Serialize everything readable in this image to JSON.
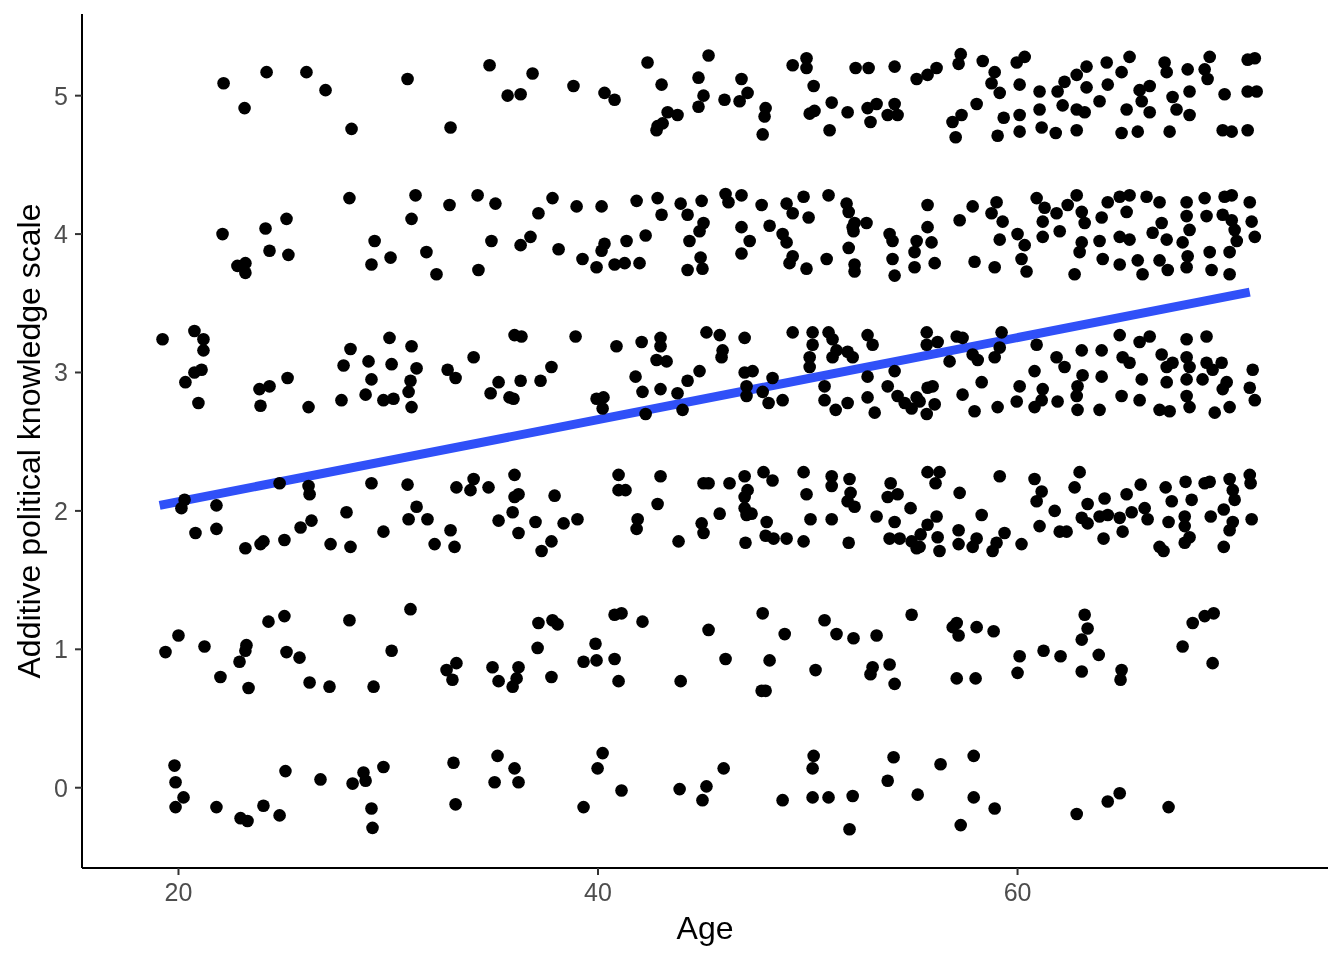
{
  "chart_data": {
    "type": "scatter",
    "xlabel": "Age",
    "ylabel": "Additive political knowledge scale",
    "xlim": [
      15.4,
      74.8
    ],
    "ylim": [
      -0.58,
      5.59
    ],
    "xticks": [
      20,
      40,
      60
    ],
    "yticks": [
      0,
      1,
      2,
      3,
      4,
      5
    ],
    "marker": "circle",
    "series": [
      {
        "color": "#000000",
        "x": [
          19.81,
          19.86,
          20.24,
          19.86,
          21.81,
          22.96,
          23.29,
          24.05,
          24.82,
          25.1,
          26.77,
          28.3,
          28.82,
          28.92,
          29.77,
          29.2,
          29.25,
          33.11,
          33.21,
          35.21,
          35.07,
          36.02,
          36.21,
          40.22,
          39.98,
          39.31,
          41.12,
          43.89,
          45.17,
          44.98,
          45.99,
          48.8,
          50.28,
          50.23,
          50.23,
          50.99,
          51.99,
          52.14,
          53.81,
          54.09,
          55.24,
          56.33,
          57.91,
          57.91,
          58.91,
          57.29,
          62.82,
          64.3,
          64.87,
          67.2,
          19.38,
          20.0,
          21.24,
          22.0,
          22.91,
          23.19,
          23.24,
          23.34,
          24.29,
          25.05,
          25.15,
          25.77,
          26.25,
          27.2,
          28.15,
          29.3,
          30.16,
          31.06,
          32.78,
          33.25,
          33.06,
          34.97,
          35.26,
          35.93,
          36.12,
          36.21,
          37.12,
          37.16,
          37.83,
          38.07,
          37.78,
          39.31,
          39.93,
          39.88,
          40.79,
          40.98,
          40.79,
          41.12,
          42.12,
          43.94,
          45.27,
          46.08,
          47.85,
          48.18,
          47.8,
          47.99,
          48.9,
          50.37,
          50.8,
          51.37,
          52.18,
          53.28,
          53.09,
          52.99,
          53.9,
          54.14,
          54.95,
          57.1,
          56.91,
          57.19,
          58.05,
          58.86,
          57.1,
          58.0,
          60.1,
          60.0,
          61.24,
          62.05,
          63.2,
          63.34,
          63.06,
          63.87,
          63.06,
          64.96,
          64.91,
          67.87,
          68.35,
          68.92,
          69.35,
          69.3,
          20.14,
          20.29,
          21.81,
          20.81,
          21.81,
          23.19,
          23.91,
          24.05,
          25.05,
          25.82,
          26.34,
          26.2,
          26.25,
          24.82,
          27.25,
          28.2,
          28.01,
          29.2,
          29.77,
          30.92,
          30.97,
          31.35,
          31.87,
          32.21,
          32.97,
          33.16,
          33.25,
          33.92,
          34.07,
          34.78,
          35.26,
          36.02,
          36.21,
          36.02,
          35.93,
          36.21,
          37.02,
          37.31,
          37.78,
          37.93,
          38.36,
          39.02,
          40.98,
          40.98,
          41.31,
          41.89,
          41.84,
          42.84,
          42.98,
          43.84,
          44.94,
          45.03,
          45.03,
          45.27,
          45.8,
          46.27,
          46.99,
          47.13,
          46.99,
          46.99,
          47.08,
          47.32,
          47.03,
          47.89,
          48.32,
          48.04,
          47.99,
          48.37,
          48.99,
          49.8,
          49.94,
          50.13,
          49.8,
          51.14,
          51.14,
          51.14,
          51.99,
          52.04,
          51.9,
          52.23,
          51.95,
          53.28,
          53.95,
          53.81,
          54.28,
          54.9,
          54.14,
          53.9,
          54.38,
          54.95,
          55.19,
          55.38,
          55.71,
          55.71,
          56.28,
          56.09,
          57.24,
          59.15,
          56.14,
          56.19,
          56.28,
          55.33,
          57.19,
          57.19,
          57.86,
          58.05,
          58.29,
          58.81,
          59.0,
          59.38,
          60.19,
          60.81,
          61.15,
          60.91,
          61.05,
          61.77,
          62.01,
          62.34,
          62.96,
          62.72,
          63.34,
          63.06,
          63.34,
          63.91,
          64.15,
          64.1,
          64.3,
          64.87,
          65.2,
          65.01,
          65.44,
          65.87,
          66.06,
          66.2,
          66.77,
          66.96,
          67.06,
          67.35,
          67.2,
          68.01,
          68.3,
          67.97,
          67.97,
          68.2,
          67.97,
          68.92,
          69.16,
          69.21,
          70.11,
          70.26,
          70.35,
          69.83,
          70.26,
          70.11,
          69.83,
          71.07,
          71.11,
          71.16,
          19.24,
          20.76,
          21.19,
          21.19,
          21.1,
          20.76,
          20.33,
          20.95,
          23.86,
          24.34,
          23.91,
          25.2,
          26.2,
          27.77,
          28.2,
          27.87,
          29.06,
          29.2,
          30.06,
          30.16,
          28.92,
          29.77,
          30.25,
          31.11,
          31.35,
          31.06,
          30.97,
          31.11,
          32.83,
          33.21,
          34.07,
          35.26,
          34.88,
          35.78,
          36.02,
          36.35,
          38.93,
          40.88,
          37.78,
          36.31,
          37.26,
          35.97,
          39.93,
          40.26,
          40.22,
          42.08,
          42.98,
          42.98,
          42.79,
          43.27,
          41.79,
          42.12,
          42.27,
          42.98,
          43.79,
          44.03,
          44.27,
          44.84,
          45.17,
          45.8,
          45.94,
          45.89,
          46.99,
          46.99,
          47.37,
          47.08,
          47.08,
          47.85,
          48.13,
          48.8,
          48.32,
          49.28,
          50.23,
          50.23,
          50.99,
          51.18,
          51.37,
          50.09,
          50.09,
          51.18,
          51.9,
          52.14,
          52.85,
          53.09,
          50.8,
          50.8,
          51.33,
          52.85,
          52.85,
          53.19,
          51.9,
          53.81,
          54.14,
          54.28,
          54.62,
          54.95,
          55.67,
          55.67,
          55.71,
          55.67,
          55.19,
          56.19,
          57.1,
          57.38,
          56.76,
          58.1,
          58.91,
          59.24,
          59.15,
          57.86,
          55.95,
          55.33,
          56.05,
          57.38,
          57.95,
          59.05,
          58.29,
          60.1,
          59.96,
          60.81,
          60.81,
          60.91,
          61.2,
          61.15,
          61.86,
          62.24,
          63.06,
          63.1,
          62.86,
          62.82,
          61.91,
          62.86,
          63.91,
          64.01,
          64.01,
          64.87,
          65.01,
          64.96,
          65.34,
          65.82,
          65.92,
          65.82,
          66.3,
          66.87,
          67.11,
          66.77,
          67.25,
          67.11,
          67.39,
          68.06,
          68.06,
          68.2,
          68.06,
          68.06,
          68.2,
          68.82,
          69.01,
          69.01,
          69.3,
          69.73,
          69.78,
          69.97,
          70.11,
          69.4,
          71.21,
          71.07,
          71.31,
          28.15,
          31.3,
          34.26,
          35.11,
          32.92,
          31.11,
          34.92,
          34.3,
          32.3,
          31.82,
          30.11,
          29.35,
          29.2,
          22.1,
          24.15,
          25.15,
          24.34,
          25.24,
          22.81,
          23.19,
          23.19,
          37.16,
          37.83,
          38.98,
          40.17,
          41.84,
          42.84,
          43.03,
          43.94,
          44.27,
          44.94,
          46.08,
          46.22,
          46.84,
          47.8,
          48.99,
          49.28,
          49.8,
          50.99,
          51.85,
          51.95,
          50.04,
          52.8,
          52.23,
          52.18,
          48.18,
          46.84,
          45.03,
          44.84,
          44.36,
          42.27,
          41.36,
          40.31,
          40.17,
          39.26,
          38.12,
          36.31,
          36.78,
          39.93,
          40.79,
          41.27,
          41.98,
          44.27,
          44.89,
          44.98,
          46.84,
          47.23,
          48.8,
          48.99,
          49.28,
          49.13,
          49.94,
          50.9,
          51.95,
          52.14,
          52.23,
          52.23,
          53.9,
          54.04,
          54.04,
          54.14,
          55.19,
          55.09,
          55.09,
          55.71,
          55.71,
          55.9,
          56.05,
          57.86,
          57.24,
          59.0,
          58.76,
          59.29,
          59.15,
          57.95,
          58.91,
          60.0,
          60.34,
          60.19,
          60.43,
          60.91,
          61.29,
          61.2,
          61.86,
          61.2,
          62.01,
          62.39,
          62.82,
          63.06,
          63.2,
          63.06,
          62.96,
          62.72,
          63.91,
          64.06,
          64.01,
          64.3,
          64.87,
          65.34,
          65.2,
          64.87,
          65.34,
          64.87,
          65.73,
          65.96,
          66.15,
          66.77,
          66.87,
          66.44,
          67.11,
          66.77,
          67.16,
          68.06,
          68.06,
          68.2,
          67.87,
          68.11,
          68.06,
          68.92,
          69.01,
          69.16,
          69.25,
          69.87,
          70.21,
          69.78,
          70.21,
          70.35,
          70.45,
          70.11,
          70.11,
          71.07,
          71.16,
          71.31,
          22.15,
          23.15,
          24.2,
          26.1,
          27.01,
          28.25,
          30.92,
          32.97,
          34.83,
          35.69,
          36.31,
          36.88,
          38.83,
          40.31,
          40.79,
          42.36,
          43.03,
          43.32,
          43.79,
          42.84,
          42.79,
          43.08,
          44.79,
          45.03,
          44.79,
          45.27,
          46.03,
          46.84,
          47.13,
          46.75,
          47.99,
          47.94,
          47.85,
          49.28,
          49.94,
          49.94,
          50.28,
          51.14,
          50.32,
          50.09,
          51.04,
          51.9,
          52.28,
          52.9,
          52.99,
          52.85,
          53.28,
          53.81,
          54.14,
          54.28,
          54.14,
          55.19,
          55.71,
          56.14,
          57.29,
          57.19,
          58.34,
          58.91,
          58.76,
          59.15,
          59.96,
          60.34,
          60.1,
          58.05,
          57.33,
          56.9,
          57.05,
          59.05,
          59.34,
          60.1,
          60.1,
          61.05,
          61.05,
          61.15,
          61.82,
          61.91,
          62.24,
          62.15,
          62.82,
          62.82,
          62.82,
          63.29,
          63.29,
          63.2,
          63.91,
          64.25,
          64.3,
          64.96,
          65.34,
          65.2,
          64.96,
          65.73,
          65.82,
          65.92,
          66.3,
          66.3,
          67.01,
          67.11,
          67.25,
          67.39,
          67.58,
          68.11,
          68.2,
          68.2,
          68.92,
          69.16,
          69.06,
          69.87,
          69.78,
          70.21,
          70.97,
          70.97,
          71.31,
          70.97,
          71.4
        ],
        "values": [
          0.16,
          0.04,
          -0.07,
          -0.14,
          -0.14,
          -0.22,
          -0.24,
          -0.13,
          -0.2,
          0.12,
          0.06,
          0.03,
          0.11,
          0.05,
          0.15,
          -0.15,
          -0.29,
          0.18,
          -0.12,
          0.23,
          0.04,
          0.14,
          0.04,
          0.25,
          0.14,
          -0.14,
          -0.02,
          -0.01,
          0.01,
          -0.09,
          0.14,
          -0.09,
          0.23,
          0.14,
          -0.07,
          -0.07,
          -0.3,
          -0.06,
          0.05,
          0.22,
          -0.05,
          0.17,
          0.23,
          -0.07,
          -0.15,
          -0.27,
          -0.19,
          -0.1,
          -0.04,
          -0.14,
          0.98,
          1.1,
          1.02,
          0.8,
          0.91,
          0.99,
          1.03,
          0.72,
          1.2,
          1.24,
          0.98,
          0.94,
          0.76,
          0.73,
          1.21,
          0.73,
          0.99,
          1.29,
          0.85,
          0.9,
          0.78,
          0.87,
          0.77,
          0.73,
          0.79,
          0.87,
          1.01,
          1.19,
          1.21,
          1.18,
          0.8,
          0.91,
          0.92,
          1.04,
          0.93,
          0.77,
          1.25,
          1.26,
          1.2,
          0.77,
          1.14,
          0.93,
          1.26,
          0.92,
          0.7,
          0.7,
          1.11,
          0.85,
          1.21,
          1.11,
          1.08,
          1.1,
          0.87,
          0.82,
          0.89,
          0.75,
          1.25,
          1.19,
          1.16,
          1.1,
          1.16,
          1.13,
          0.79,
          0.79,
          0.95,
          0.83,
          0.99,
          0.95,
          1.25,
          1.15,
          1.07,
          0.96,
          0.84,
          0.85,
          0.78,
          1.02,
          1.19,
          1.24,
          1.26,
          0.9,
          2.02,
          2.08,
          2.04,
          1.84,
          1.87,
          1.73,
          1.76,
          1.78,
          1.79,
          1.88,
          1.93,
          2.18,
          2.12,
          2.2,
          1.76,
          1.74,
          1.99,
          2.2,
          1.85,
          2.19,
          1.94,
          2.03,
          1.94,
          1.76,
          1.86,
          1.74,
          2.17,
          2.15,
          2.23,
          2.17,
          1.93,
          2.26,
          2.12,
          2.1,
          1.99,
          1.84,
          1.92,
          1.71,
          1.78,
          2.11,
          1.91,
          1.94,
          2.26,
          2.15,
          2.15,
          1.94,
          1.87,
          2.05,
          2.25,
          1.78,
          1.91,
          1.84,
          2.2,
          2.2,
          1.98,
          2.2,
          2.25,
          2.15,
          2.1,
          2.02,
          1.97,
          1.98,
          1.77,
          2.28,
          2.22,
          1.92,
          1.82,
          1.8,
          1.8,
          2.28,
          2.12,
          1.94,
          1.78,
          2.25,
          1.94,
          2.18,
          2.23,
          2.13,
          2.07,
          2.03,
          1.77,
          1.96,
          2.2,
          2.1,
          2.12,
          2.02,
          1.92,
          1.8,
          1.8,
          1.78,
          1.73,
          1.83,
          2.28,
          1.9,
          2.28,
          2.2,
          2.13,
          2.25,
          1.96,
          1.81,
          1.71,
          1.74,
          1.86,
          1.76,
          1.74,
          1.8,
          1.97,
          1.71,
          1.77,
          1.84,
          1.76,
          2.23,
          2.14,
          2.07,
          1.89,
          2.0,
          1.85,
          1.85,
          2.28,
          2.17,
          2.05,
          1.95,
          1.91,
          1.96,
          2.09,
          1.8,
          1.97,
          1.95,
          2.12,
          1.85,
          1.99,
          2.19,
          2.02,
          1.94,
          1.74,
          1.71,
          2.17,
          2.07,
          1.92,
          2.21,
          2.08,
          1.96,
          1.89,
          1.81,
          1.77,
          2.2,
          2.21,
          1.96,
          2.23,
          2.15,
          2.08,
          2.01,
          1.92,
          1.86,
          1.74,
          2.26,
          2.2,
          1.94,
          3.24,
          3.3,
          3.24,
          3.16,
          3.02,
          3.0,
          2.93,
          2.78,
          2.88,
          2.9,
          2.76,
          2.96,
          2.75,
          2.8,
          3.17,
          3.05,
          3.08,
          2.95,
          3.25,
          3.06,
          2.84,
          2.8,
          2.81,
          3.19,
          3.03,
          2.94,
          2.86,
          2.75,
          3.02,
          2.96,
          3.11,
          2.93,
          2.85,
          2.82,
          3.27,
          3.26,
          3.26,
          3.19,
          3.04,
          2.94,
          2.94,
          2.81,
          2.81,
          2.82,
          2.74,
          3.22,
          3.25,
          3.19,
          3.09,
          3.08,
          2.97,
          2.86,
          2.7,
          2.88,
          2.85,
          2.73,
          2.94,
          3.01,
          3.29,
          3.27,
          3.16,
          3.11,
          3.25,
          3.0,
          3.01,
          2.9,
          2.83,
          2.86,
          2.78,
          2.8,
          2.96,
          3.29,
          3.29,
          3.2,
          3.29,
          3.24,
          3.16,
          3.11,
          3.04,
          3.11,
          3.15,
          3.11,
          3.27,
          3.2,
          2.9,
          2.8,
          2.73,
          2.97,
          2.82,
          2.71,
          2.78,
          2.9,
          3.01,
          2.83,
          2.78,
          2.74,
          3.29,
          3.2,
          2.89,
          2.7,
          2.82,
          3.22,
          3.26,
          3.25,
          3.08,
          3.09,
          3.11,
          3.29,
          3.18,
          3.13,
          2.9,
          2.79,
          2.77,
          2.84,
          2.72,
          2.75,
          2.93,
          2.9,
          2.79,
          2.75,
          3.01,
          3.2,
          2.88,
          2.8,
          3.11,
          3.04,
          3.16,
          2.98,
          2.9,
          2.83,
          2.79,
          2.73,
          2.73,
          3.16,
          2.97,
          3.27,
          3.11,
          2.83,
          3.07,
          3.22,
          2.95,
          2.8,
          3.26,
          3.13,
          3.04,
          2.73,
          2.72,
          2.93,
          3.07,
          3.24,
          3.11,
          3.04,
          2.95,
          2.83,
          2.75,
          2.95,
          3.07,
          3.26,
          3.02,
          3.07,
          2.88,
          2.93,
          2.75,
          2.71,
          3.02,
          2.89,
          2.8,
          4.26,
          4.28,
          4.28,
          4.22,
          4.21,
          4.11,
          3.95,
          3.74,
          3.71,
          3.87,
          3.83,
          3.95,
          3.78,
          4.0,
          4.04,
          4.11,
          3.88,
          3.85,
          3.77,
          3.79,
          3.72,
          4.15,
          4.26,
          4.2,
          4.2,
          4.24,
          4.26,
          4.14,
          4.22,
          4.14,
          4.24,
          4.29,
          4.23,
          4.28,
          4.21,
          4.22,
          4.15,
          4.27,
          4.28,
          4.22,
          4.16,
          4.12,
          4.08,
          4.08,
          4.02,
          4.06,
          4.05,
          4.08,
          4.02,
          3.95,
          3.99,
          3.95,
          3.93,
          3.88,
          3.82,
          3.89,
          3.92,
          3.98,
          3.76,
          3.78,
          3.79,
          3.79,
          3.74,
          3.83,
          3.75,
          3.86,
          3.95,
          4.0,
          3.94,
          3.84,
          3.79,
          3.75,
          3.82,
          3.9,
          4.05,
          3.78,
          3.73,
          4.0,
          3.95,
          3.82,
          3.7,
          3.95,
          3.87,
          3.76,
          4.21,
          4.05,
          3.94,
          3.79,
          4.2,
          4.1,
          4.23,
          4.15,
          4.09,
          3.96,
          3.8,
          3.76,
          4.0,
          3.92,
          3.82,
          3.73,
          4.26,
          4.19,
          4.09,
          4.15,
          3.98,
          4.02,
          4.21,
          4.28,
          4.16,
          4.08,
          3.94,
          3.87,
          3.71,
          3.95,
          3.82,
          4.12,
          4.23,
          4.27,
          4.28,
          4.16,
          3.98,
          3.96,
          3.78,
          3.81,
          3.71,
          4.27,
          4.23,
          4.08,
          4.01,
          3.96,
          3.81,
          3.74,
          4.23,
          4.13,
          4.03,
          3.94,
          3.84,
          3.76,
          4.26,
          4.13,
          3.87,
          3.74,
          4.27,
          4.28,
          4.14,
          4.1,
          4.03,
          3.95,
          3.87,
          3.71,
          4.23,
          4.09,
          3.98,
          5.09,
          4.91,
          5.17,
          5.17,
          5.04,
          4.76,
          5.12,
          4.77,
          5.22,
          5.0,
          5.01,
          5.16,
          5.07,
          5.02,
          4.97,
          5.24,
          5.08,
          4.88,
          4.86,
          4.78,
          4.75,
          4.8,
          5.13,
          5.0,
          4.92,
          5.29,
          4.97,
          5.12,
          5.02,
          4.96,
          4.91,
          4.85,
          4.72,
          5.22,
          5.27,
          5.2,
          5.07,
          4.95,
          4.89,
          4.87,
          4.75,
          4.88,
          5.2,
          5.2,
          4.81,
          4.91,
          4.94,
          4.86,
          4.94,
          4.86,
          5.21,
          5.12,
          5.15,
          5.2,
          5.3,
          5.23,
          5.25,
          5.17,
          5.09,
          5.02,
          5.24,
          5.28,
          5.08,
          4.94,
          4.86,
          4.81,
          4.7,
          4.71,
          4.84,
          4.86,
          4.74,
          5.03,
          4.9,
          4.77,
          4.73,
          5.03,
          5.1,
          4.93,
          5.15,
          4.9,
          4.75,
          5.06,
          5.21,
          4.88,
          4.96,
          5.24,
          5.08,
          5.17,
          5.28,
          4.9,
          4.73,
          4.74,
          5.04,
          4.96,
          5.07,
          4.88,
          5.24,
          5.17,
          4.74,
          4.99,
          4.9,
          5.19,
          5.03,
          4.86,
          5.19,
          5.28,
          5.12,
          5.01,
          4.75,
          4.74,
          4.75,
          5.26,
          5.27,
          5.03,
          5.03
        ]
      },
      {
        "type": "line",
        "color": "#3050f8",
        "marker": "none",
        "x": [
          19.1,
          71.07
        ],
        "values": [
          2.04,
          3.58
        ]
      }
    ]
  }
}
